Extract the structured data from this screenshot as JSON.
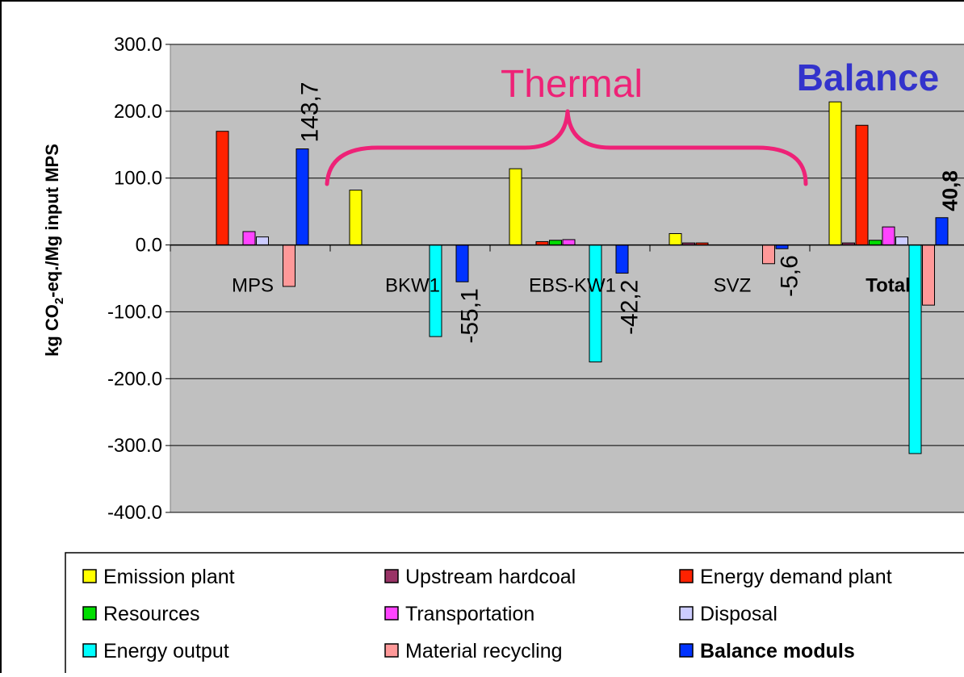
{
  "chart_data": {
    "type": "bar",
    "ylabel": "kg CO2-eq./Mg input MPS",
    "ylabel_parts": {
      "pre": "kg CO",
      "sub": "2",
      "post": "-eq./Mg input MPS"
    },
    "ylim": [
      -400,
      300
    ],
    "yticks": [
      300,
      200,
      100,
      0,
      -100,
      -200,
      -300,
      -400
    ],
    "ytick_labels": [
      "300.0",
      "200.0",
      "100.0",
      "0.0",
      "-100.0",
      "-200.0",
      "-300.0",
      "-400.0"
    ],
    "grid": true,
    "categories": [
      "MPS",
      "BKW1",
      "EBS-KW1",
      "SVZ",
      "Total"
    ],
    "series": [
      {
        "name": "Emission plant",
        "color": "#ffff00",
        "values": [
          0,
          82,
          114,
          17,
          214
        ]
      },
      {
        "name": "Upstream hardcoal",
        "color": "#993366",
        "values": [
          0,
          0,
          0,
          3,
          3
        ]
      },
      {
        "name": "Energy demand plant",
        "color": "#ff2200",
        "values": [
          170,
          0,
          5,
          3,
          179
        ]
      },
      {
        "name": "Resources",
        "color": "#00dd00",
        "values": [
          0,
          0,
          7,
          0,
          7
        ]
      },
      {
        "name": "Transportation",
        "color": "#ff44ff",
        "values": [
          20,
          0,
          8,
          0,
          27
        ]
      },
      {
        "name": "Disposal",
        "color": "#ccccff",
        "values": [
          12,
          0,
          0,
          0,
          12
        ]
      },
      {
        "name": "Energy output",
        "color": "#00ffff",
        "values": [
          0,
          -137,
          -175,
          0,
          -312
        ]
      },
      {
        "name": "Material recycling",
        "color": "#ff9999",
        "values": [
          -62,
          0,
          0,
          -28,
          -90
        ]
      },
      {
        "name": "Balance moduls",
        "color": "#0033ff",
        "values": [
          143.7,
          -55.1,
          -42.2,
          -5.6,
          40.8
        ]
      }
    ],
    "bar_labels": [
      "143,7",
      "-55,1",
      "-42,2",
      "-5,6",
      "40,8"
    ],
    "annotations": {
      "thermal": "Thermal",
      "balance": "Balance"
    },
    "legend_position": "bottom",
    "colors": {
      "plot_bg": "#c0c0c0",
      "thermal_color": "#ee2277",
      "balance_color": "#3333cc"
    }
  }
}
